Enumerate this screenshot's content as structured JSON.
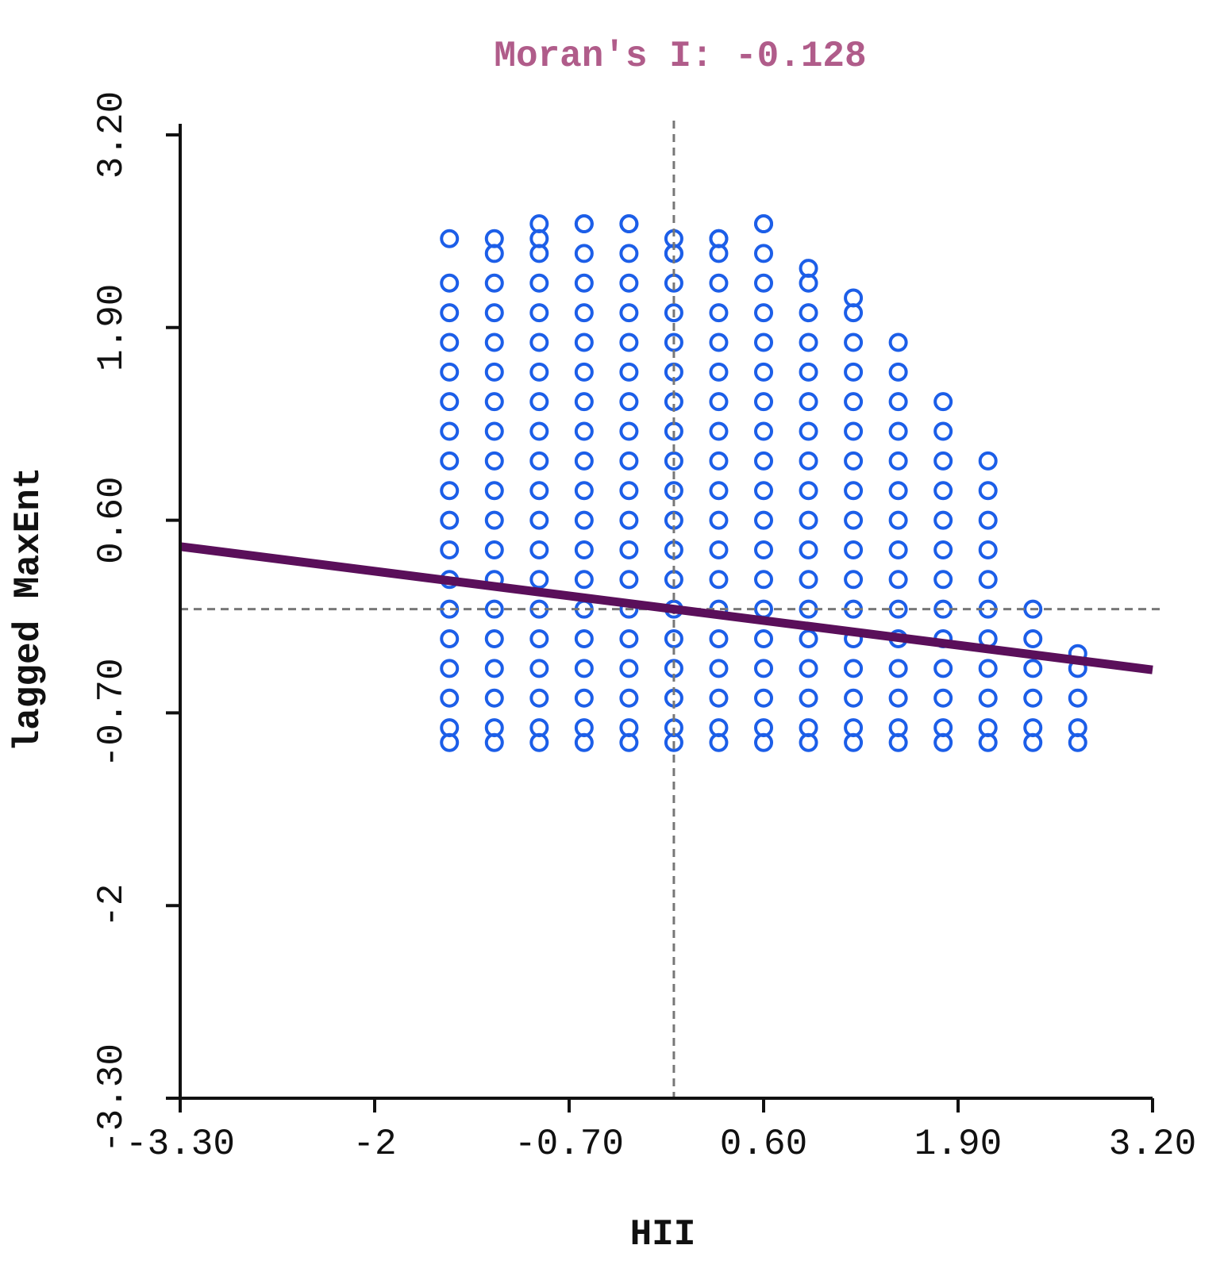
{
  "chart_data": {
    "type": "scatter",
    "title": "Moran's I: -0.128",
    "xlabel": "HII",
    "ylabel": "lagged MaxEnt",
    "xlim": [
      -3.3,
      3.2
    ],
    "ylim": [
      -3.3,
      3.2
    ],
    "xticks": [
      -3.3,
      -2,
      -0.7,
      0.6,
      1.9,
      3.2
    ],
    "yticks": [
      -3.3,
      -2,
      -0.7,
      0.6,
      1.9,
      3.2
    ],
    "xtick_labels": [
      "-3.30",
      "-2",
      "-0.70",
      "0.60",
      "1.90",
      "3.20"
    ],
    "ytick_labels": [
      "-3.30",
      "-2",
      "-0.70",
      "0.60",
      "1.90",
      "3.20"
    ],
    "mean_lines": {
      "x": 0,
      "y": 0
    },
    "regression_line": {
      "slope": -0.128,
      "intercept": 0
    },
    "series": [
      {
        "name": "observations",
        "marker": "circle",
        "x_values": [
          -1.5,
          -1.5,
          -1.5,
          -1.5,
          -1.5,
          -1.5,
          -1.5,
          -1.5,
          -1.5,
          -1.5,
          -1.5,
          -1.5,
          -1.5,
          -1.5,
          -1.5,
          -1.5,
          -1.5,
          -1.5,
          -1.2,
          -1.2,
          -1.2,
          -1.2,
          -1.2,
          -1.2,
          -1.2,
          -1.2,
          -1.2,
          -1.2,
          -1.2,
          -1.2,
          -1.2,
          -1.2,
          -1.2,
          -1.2,
          -1.2,
          -1.2,
          -1.2,
          -0.9,
          -0.9,
          -0.9,
          -0.9,
          -0.9,
          -0.9,
          -0.9,
          -0.9,
          -0.9,
          -0.9,
          -0.9,
          -0.9,
          -0.9,
          -0.9,
          -0.9,
          -0.9,
          -0.9,
          -0.9,
          -0.9,
          -0.9,
          -0.6,
          -0.6,
          -0.6,
          -0.6,
          -0.6,
          -0.6,
          -0.6,
          -0.6,
          -0.6,
          -0.6,
          -0.6,
          -0.6,
          -0.6,
          -0.6,
          -0.6,
          -0.6,
          -0.6,
          -0.6,
          -0.6,
          -0.6,
          -0.3,
          -0.3,
          -0.3,
          -0.3,
          -0.3,
          -0.3,
          -0.3,
          -0.3,
          -0.3,
          -0.3,
          -0.3,
          -0.3,
          -0.3,
          -0.3,
          -0.3,
          -0.3,
          -0.3,
          -0.3,
          -0.3,
          -0.3,
          0.0,
          0.0,
          0.0,
          0.0,
          0.0,
          0.0,
          0.0,
          0.0,
          0.0,
          0.0,
          0.0,
          0.0,
          0.0,
          0.0,
          0.0,
          0.0,
          0.0,
          0.0,
          0.0,
          0.0,
          0.3,
          0.3,
          0.3,
          0.3,
          0.3,
          0.3,
          0.3,
          0.3,
          0.3,
          0.3,
          0.3,
          0.3,
          0.3,
          0.3,
          0.3,
          0.3,
          0.3,
          0.3,
          0.3,
          0.3,
          0.6,
          0.6,
          0.6,
          0.6,
          0.6,
          0.6,
          0.6,
          0.6,
          0.6,
          0.6,
          0.6,
          0.6,
          0.6,
          0.6,
          0.6,
          0.6,
          0.6,
          0.6,
          0.6,
          0.6,
          0.9,
          0.9,
          0.9,
          0.9,
          0.9,
          0.9,
          0.9,
          0.9,
          0.9,
          0.9,
          0.9,
          0.9,
          0.9,
          0.9,
          0.9,
          0.9,
          0.9,
          0.9,
          1.2,
          1.2,
          1.2,
          1.2,
          1.2,
          1.2,
          1.2,
          1.2,
          1.2,
          1.2,
          1.2,
          1.2,
          1.2,
          1.2,
          1.2,
          1.2,
          1.2,
          1.5,
          1.5,
          1.5,
          1.5,
          1.5,
          1.5,
          1.5,
          1.5,
          1.5,
          1.5,
          1.5,
          1.5,
          1.5,
          1.5,
          1.5,
          1.8,
          1.8,
          1.8,
          1.8,
          1.8,
          1.8,
          1.8,
          1.8,
          1.8,
          1.8,
          1.8,
          1.8,
          1.8,
          2.1,
          2.1,
          2.1,
          2.1,
          2.1,
          2.1,
          2.1,
          2.1,
          2.1,
          2.1,
          2.1,
          2.4,
          2.4,
          2.4,
          2.4,
          2.4,
          2.4,
          2.7,
          2.7,
          2.7,
          2.7,
          2.7
        ],
        "y_values": [
          -0.9,
          -0.8,
          -0.6,
          -0.4,
          -0.2,
          0.0,
          0.2,
          0.4,
          0.6,
          0.8,
          1.0,
          1.2,
          1.4,
          1.6,
          1.8,
          2.0,
          2.2,
          2.5,
          -0.9,
          -0.8,
          -0.6,
          -0.4,
          -0.2,
          0.0,
          0.2,
          0.4,
          0.6,
          0.8,
          1.0,
          1.2,
          1.4,
          1.6,
          1.8,
          2.0,
          2.2,
          2.4,
          2.5,
          -0.9,
          -0.8,
          -0.6,
          -0.4,
          -0.2,
          0.0,
          0.2,
          0.4,
          0.6,
          0.8,
          1.0,
          1.2,
          1.4,
          1.6,
          1.8,
          2.0,
          2.2,
          2.4,
          2.6,
          2.5,
          -0.9,
          -0.8,
          -0.6,
          -0.4,
          -0.2,
          0.0,
          0.2,
          0.4,
          0.6,
          0.8,
          1.0,
          1.2,
          1.4,
          1.6,
          1.8,
          2.0,
          2.2,
          2.4,
          2.6,
          2.6,
          -0.9,
          -0.8,
          -0.6,
          -0.4,
          -0.2,
          0.0,
          0.2,
          0.4,
          0.6,
          0.8,
          1.0,
          1.2,
          1.4,
          1.6,
          1.8,
          2.0,
          2.2,
          2.4,
          2.6,
          2.6,
          -0.9,
          -0.8,
          -0.6,
          -0.4,
          -0.2,
          0.0,
          0.2,
          0.4,
          0.6,
          0.8,
          1.0,
          1.2,
          1.4,
          1.6,
          1.8,
          2.0,
          2.2,
          2.4,
          2.5,
          2.4,
          -0.9,
          -0.8,
          -0.6,
          -0.4,
          -0.2,
          0.0,
          0.2,
          0.4,
          0.6,
          0.8,
          1.0,
          1.2,
          1.4,
          1.6,
          1.8,
          2.0,
          2.2,
          2.4,
          2.5,
          2.5,
          -0.9,
          -0.8,
          -0.6,
          -0.4,
          -0.2,
          0.0,
          0.2,
          0.4,
          0.6,
          0.8,
          1.0,
          1.2,
          1.4,
          1.6,
          1.8,
          2.0,
          2.2,
          2.4,
          2.6,
          2.6,
          -0.9,
          -0.8,
          -0.6,
          -0.4,
          -0.2,
          0.0,
          0.2,
          0.4,
          0.6,
          0.8,
          1.0,
          1.2,
          1.4,
          1.6,
          1.8,
          2.0,
          2.2,
          2.3,
          -0.9,
          -0.8,
          -0.6,
          -0.4,
          -0.2,
          0.0,
          0.2,
          0.4,
          0.6,
          0.8,
          1.0,
          1.2,
          1.4,
          1.6,
          1.8,
          2.0,
          2.1,
          -0.9,
          -0.8,
          -0.6,
          -0.4,
          -0.2,
          0.0,
          0.2,
          0.4,
          0.6,
          0.8,
          1.0,
          1.2,
          1.4,
          1.6,
          1.8,
          -0.9,
          -0.8,
          -0.6,
          -0.4,
          -0.2,
          0.0,
          0.2,
          0.4,
          0.6,
          0.8,
          1.0,
          1.2,
          1.4,
          -0.9,
          -0.8,
          -0.6,
          -0.4,
          -0.2,
          0.0,
          0.2,
          0.4,
          0.6,
          0.8,
          1.0,
          -0.9,
          -0.8,
          -0.6,
          -0.4,
          -0.2,
          0.0,
          -0.9,
          -0.8,
          -0.6,
          -0.4,
          -0.3
        ]
      }
    ],
    "colors": {
      "title": "#b05c8a",
      "points": "#1c5ee8",
      "regression": "#5a0f5a",
      "axis": "#111111",
      "guide": "#777777"
    }
  }
}
